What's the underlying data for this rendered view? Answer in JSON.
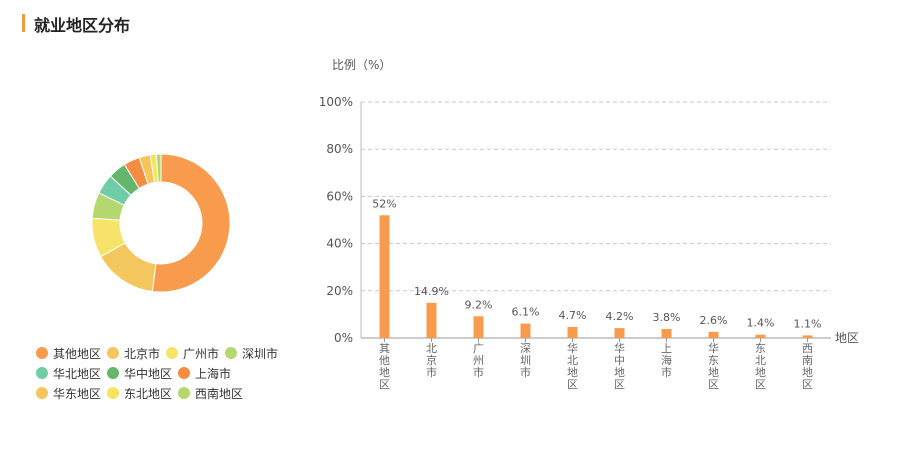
{
  "section": {
    "title": "就业地区分布",
    "accent_color": "#f29c38"
  },
  "chart_data": [
    {
      "type": "pie",
      "variant": "donut",
      "categories": [
        "其他地区",
        "北京市",
        "广州市",
        "深圳市",
        "华北地区",
        "华中地区",
        "上海市",
        "华东地区",
        "东北地区",
        "西南地区"
      ],
      "values": [
        52,
        14.9,
        9.2,
        6.1,
        4.7,
        4.2,
        3.8,
        2.6,
        1.4,
        1.1
      ],
      "colors": [
        "#f99b4c",
        "#f4c65e",
        "#f8e36a",
        "#b5d76f",
        "#6fcca6",
        "#64b66b",
        "#f48c42",
        "#f6c45a",
        "#f7e35c",
        "#b4d76a"
      ],
      "legend_placement": "bottom-left",
      "legend_rows": [
        [
          "其他地区",
          "北京市",
          "广州市",
          "深圳市"
        ],
        [
          "华北地区",
          "华中地区",
          "上海市"
        ],
        [
          "华东地区",
          "东北地区",
          "西南地区"
        ]
      ]
    },
    {
      "type": "bar",
      "categories": [
        "其他地区",
        "北京市",
        "广州市",
        "深圳市",
        "华北地区",
        "华中地区",
        "上海市",
        "华东地区",
        "东北地区",
        "西南地区"
      ],
      "values": [
        52,
        14.9,
        9.2,
        6.1,
        4.7,
        4.2,
        3.8,
        2.6,
        1.4,
        1.1
      ],
      "data_labels": [
        "52%",
        "14.9%",
        "9.2%",
        "6.1%",
        "4.7%",
        "4.2%",
        "3.8%",
        "2.6%",
        "1.4%",
        "1.1%"
      ],
      "ylabel": "比例（%）",
      "xlabel": "地区",
      "ylim": [
        0,
        100
      ],
      "yticks": [
        0,
        20,
        40,
        60,
        80,
        100
      ],
      "ytick_labels": [
        "0%",
        "20%",
        "40%",
        "60%",
        "80%",
        "100%"
      ],
      "grid": true,
      "bar_color": "#f99b4c"
    }
  ]
}
